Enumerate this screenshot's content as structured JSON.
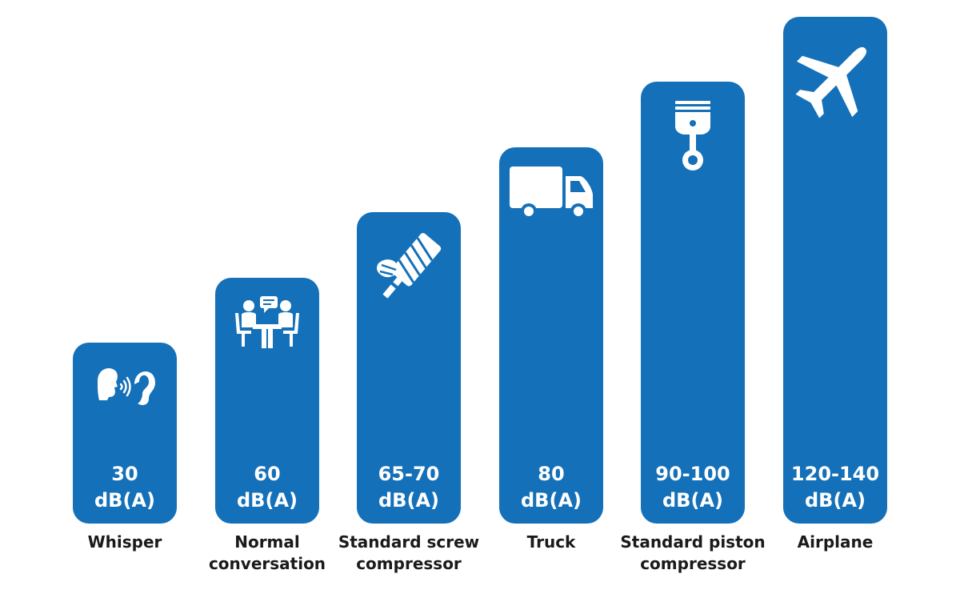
{
  "chart_data": {
    "type": "bar",
    "title": "",
    "xlabel": "",
    "ylabel": "",
    "bar_color": "#1470B8",
    "categories": [
      {
        "label_line1": "Whisper",
        "label_line2": "",
        "value_line1": "30",
        "value_line2": "dB(A)",
        "value": 30,
        "icon": "whisper-ear-icon"
      },
      {
        "label_line1": "Normal",
        "label_line2": "conversation",
        "value_line1": "60",
        "value_line2": "dB(A)",
        "value": 60,
        "icon": "conversation-icon"
      },
      {
        "label_line1": "Standard screw",
        "label_line2": "compressor",
        "value_line1": "65-70",
        "value_line2": "dB(A)",
        "value": 67.5,
        "icon": "screw-rotor-icon"
      },
      {
        "label_line1": "Truck",
        "label_line2": "",
        "value_line1": "80",
        "value_line2": "dB(A)",
        "value": 80,
        "icon": "truck-icon"
      },
      {
        "label_line1": "Standard piston",
        "label_line2": "compressor",
        "value_line1": "90-100",
        "value_line2": "dB(A)",
        "value": 95,
        "icon": "piston-icon"
      },
      {
        "label_line1": "Airplane",
        "label_line2": "",
        "value_line1": "120-140",
        "value_line2": "dB(A)",
        "value": 130,
        "icon": "airplane-icon"
      }
    ]
  }
}
